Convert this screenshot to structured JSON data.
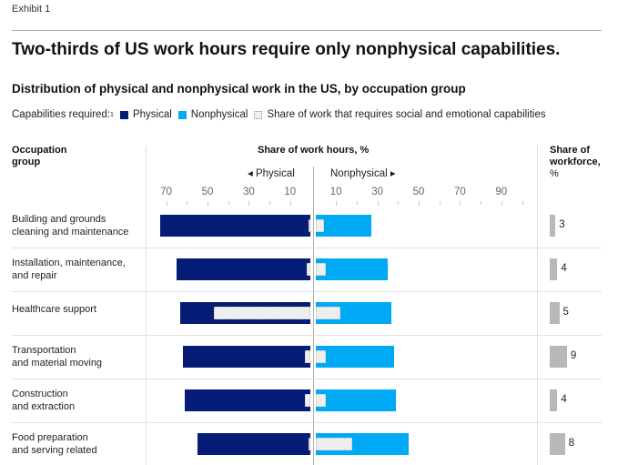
{
  "header": {
    "exhibit": "Exhibit 1",
    "title": "Two-thirds of US work hours require only nonphysical capabilities.",
    "subtitle": "Distribution of physical and nonphysical work in the US, by occupation group"
  },
  "legend": {
    "prefix": "Capabilities required:",
    "footnote_mark": "1",
    "items": [
      {
        "label": "Physical",
        "color": "#051c77"
      },
      {
        "label": "Nonphysical",
        "color": "#00a9f4"
      },
      {
        "label": "Share of work that requires social and emotional capabilities",
        "color": "#efefef"
      }
    ]
  },
  "columns": {
    "occupation": [
      "Occupation",
      "group"
    ],
    "share_hours": "Share of work hours, %",
    "workforce": [
      "Share of",
      "workforce,",
      "%"
    ],
    "physical_dir": "◂ Physical",
    "nonphysical_dir": "Nonphysical ▸"
  },
  "chart_data": {
    "type": "bar",
    "title": "Two-thirds of US work hours require only nonphysical capabilities.",
    "subtitle": "Distribution of physical and nonphysical work in the US, by occupation group",
    "xlabel": "Share of work hours, %",
    "orientation": "horizontal-diverging",
    "left_ticks": [
      70,
      50,
      30,
      10
    ],
    "right_ticks": [
      10,
      30,
      50,
      70,
      90
    ],
    "xlim_left": [
      0,
      72
    ],
    "xlim_right": [
      0,
      95
    ],
    "grid": false,
    "legend_position": "top-left",
    "categories": [
      [
        "Building and grounds",
        "cleaning and maintenance"
      ],
      [
        "Installation, maintenance,",
        "and repair"
      ],
      [
        "Healthcare support"
      ],
      [
        "Transportation",
        "and material moving"
      ],
      [
        "Construction",
        "and extraction"
      ],
      [
        "Food preparation",
        "and serving related"
      ]
    ],
    "series": [
      {
        "name": "Physical",
        "color": "#051c77",
        "values": [
          73,
          65,
          63,
          62,
          61,
          55
        ]
      },
      {
        "name": "Nonphysical",
        "color": "#00a9f4",
        "values": [
          27,
          35,
          37,
          38,
          39,
          45
        ]
      },
      {
        "name": "Social and emotional (physical side)",
        "color": "#efefef",
        "values": [
          1,
          2,
          47,
          3,
          3,
          1
        ]
      },
      {
        "name": "Social and emotional (nonphysical side)",
        "color": "#efefef",
        "values": [
          4,
          5,
          12,
          5,
          5,
          18
        ]
      }
    ],
    "workforce_share": {
      "name": "Share of workforce, %",
      "color": "#b8b8b8",
      "values": [
        3,
        4,
        5,
        9,
        4,
        8
      ]
    }
  }
}
